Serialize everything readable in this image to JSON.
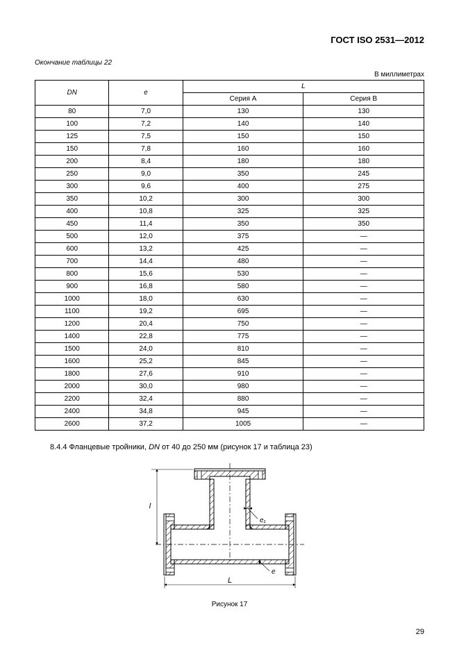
{
  "header": "ГОСТ ISO 2531—2012",
  "continuation_label": "Окончание таблицы 22",
  "units_label": "В миллиметрах",
  "table": {
    "col_dn": "DN",
    "col_e": "e",
    "col_L": "L",
    "col_seriesA": "Серия A",
    "col_seriesB": "Серия B",
    "groups": [
      [
        [
          "80",
          "7,0",
          "130",
          "130"
        ],
        [
          "100",
          "7,2",
          "140",
          "140"
        ]
      ],
      [
        [
          "125",
          "7,5",
          "150",
          "150"
        ],
        [
          "150",
          "7,8",
          "160",
          "160"
        ]
      ],
      [
        [
          "200",
          "8,4",
          "180",
          "180"
        ],
        [
          "250",
          "9,0",
          "350",
          "245"
        ]
      ],
      [
        [
          "300",
          "9,6",
          "400",
          "275"
        ],
        [
          "350",
          "10,2",
          "300",
          "300"
        ]
      ],
      [
        [
          "400",
          "10,8",
          "325",
          "325"
        ],
        [
          "450",
          "11,4",
          "350",
          "350"
        ]
      ],
      [
        [
          "500",
          "12,0",
          "375",
          "—"
        ],
        [
          "600",
          "13,2",
          "425",
          "—"
        ]
      ],
      [
        [
          "700",
          "14,4",
          "480",
          "—"
        ],
        [
          "800",
          "15,6",
          "530",
          "—"
        ]
      ],
      [
        [
          "900",
          "16,8",
          "580",
          "—"
        ],
        [
          "1000",
          "18,0",
          "630",
          "—"
        ]
      ],
      [
        [
          "1100",
          "19,2",
          "695",
          "—"
        ],
        [
          "1200",
          "20,4",
          "750",
          "—"
        ]
      ],
      [
        [
          "1400",
          "22,8",
          "775",
          "—"
        ],
        [
          "1500",
          "24,0",
          "810",
          "—"
        ]
      ],
      [
        [
          "1600",
          "25,2",
          "845",
          "—"
        ],
        [
          "1800",
          "27,6",
          "910",
          "—"
        ]
      ],
      [
        [
          "2000",
          "30,0",
          "980",
          "—"
        ],
        [
          "2200",
          "32,4",
          "880",
          "—"
        ]
      ],
      [
        [
          "2400",
          "34,8",
          "945",
          "—"
        ],
        [
          "2600",
          "37,2",
          "1005",
          "—"
        ]
      ]
    ]
  },
  "section_text_pre": "8.4.4 Фланцевые тройники, ",
  "section_text_dn": "DN",
  "section_text_post": " от 40 до 250 мм (рисунок 17 и таблица 23)",
  "figure_caption": "Рисунок 17",
  "page_number": "29",
  "figure": {
    "label_L": "L",
    "label_l": "l",
    "label_e1": "e₁",
    "label_e": "e"
  }
}
